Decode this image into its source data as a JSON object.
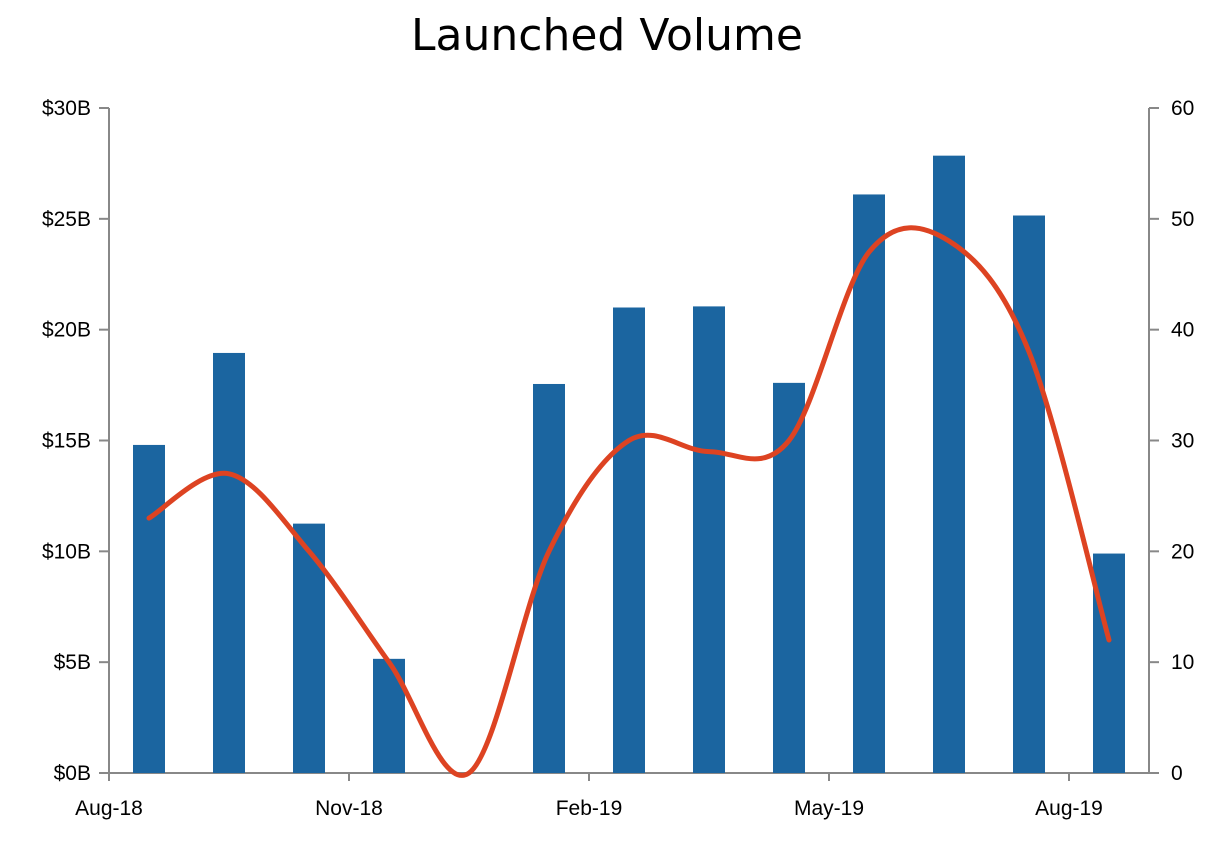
{
  "chart_data": {
    "type": "bar",
    "title": "Launched Volume",
    "months": [
      "Aug-18",
      "Sep-18",
      "Oct-18",
      "Nov-18",
      "Dec-18",
      "Jan-19",
      "Feb-19",
      "Mar-19",
      "Apr-19",
      "May-19",
      "Jun-19",
      "Jul-19",
      "Aug-19"
    ],
    "x_tick_labels": [
      "Aug-18",
      "Nov-18",
      "Feb-19",
      "May-19",
      "Aug-19"
    ],
    "series": [
      {
        "type": "bar",
        "axis": "left",
        "color": "#1b65a0",
        "values": [
          14.8,
          18.95,
          11.25,
          5.15,
          0,
          17.55,
          21.0,
          21.05,
          17.6,
          26.1,
          27.85,
          25.15,
          9.9
        ]
      },
      {
        "type": "line",
        "axis": "right",
        "color": "#dd4322",
        "smooth": true,
        "values": [
          23,
          27,
          20,
          10,
          0,
          20,
          30,
          29,
          30,
          47,
          48,
          38,
          12
        ]
      }
    ],
    "y_left": {
      "min": 0,
      "max": 30,
      "ticks": [
        "$0B",
        "$5B",
        "$10B",
        "$15B",
        "$20B",
        "$25B",
        "$30B"
      ]
    },
    "y_right": {
      "min": 0,
      "max": 60,
      "ticks": [
        "0",
        "10",
        "20",
        "30",
        "40",
        "50",
        "60"
      ]
    },
    "grid": false,
    "legend": "none"
  }
}
